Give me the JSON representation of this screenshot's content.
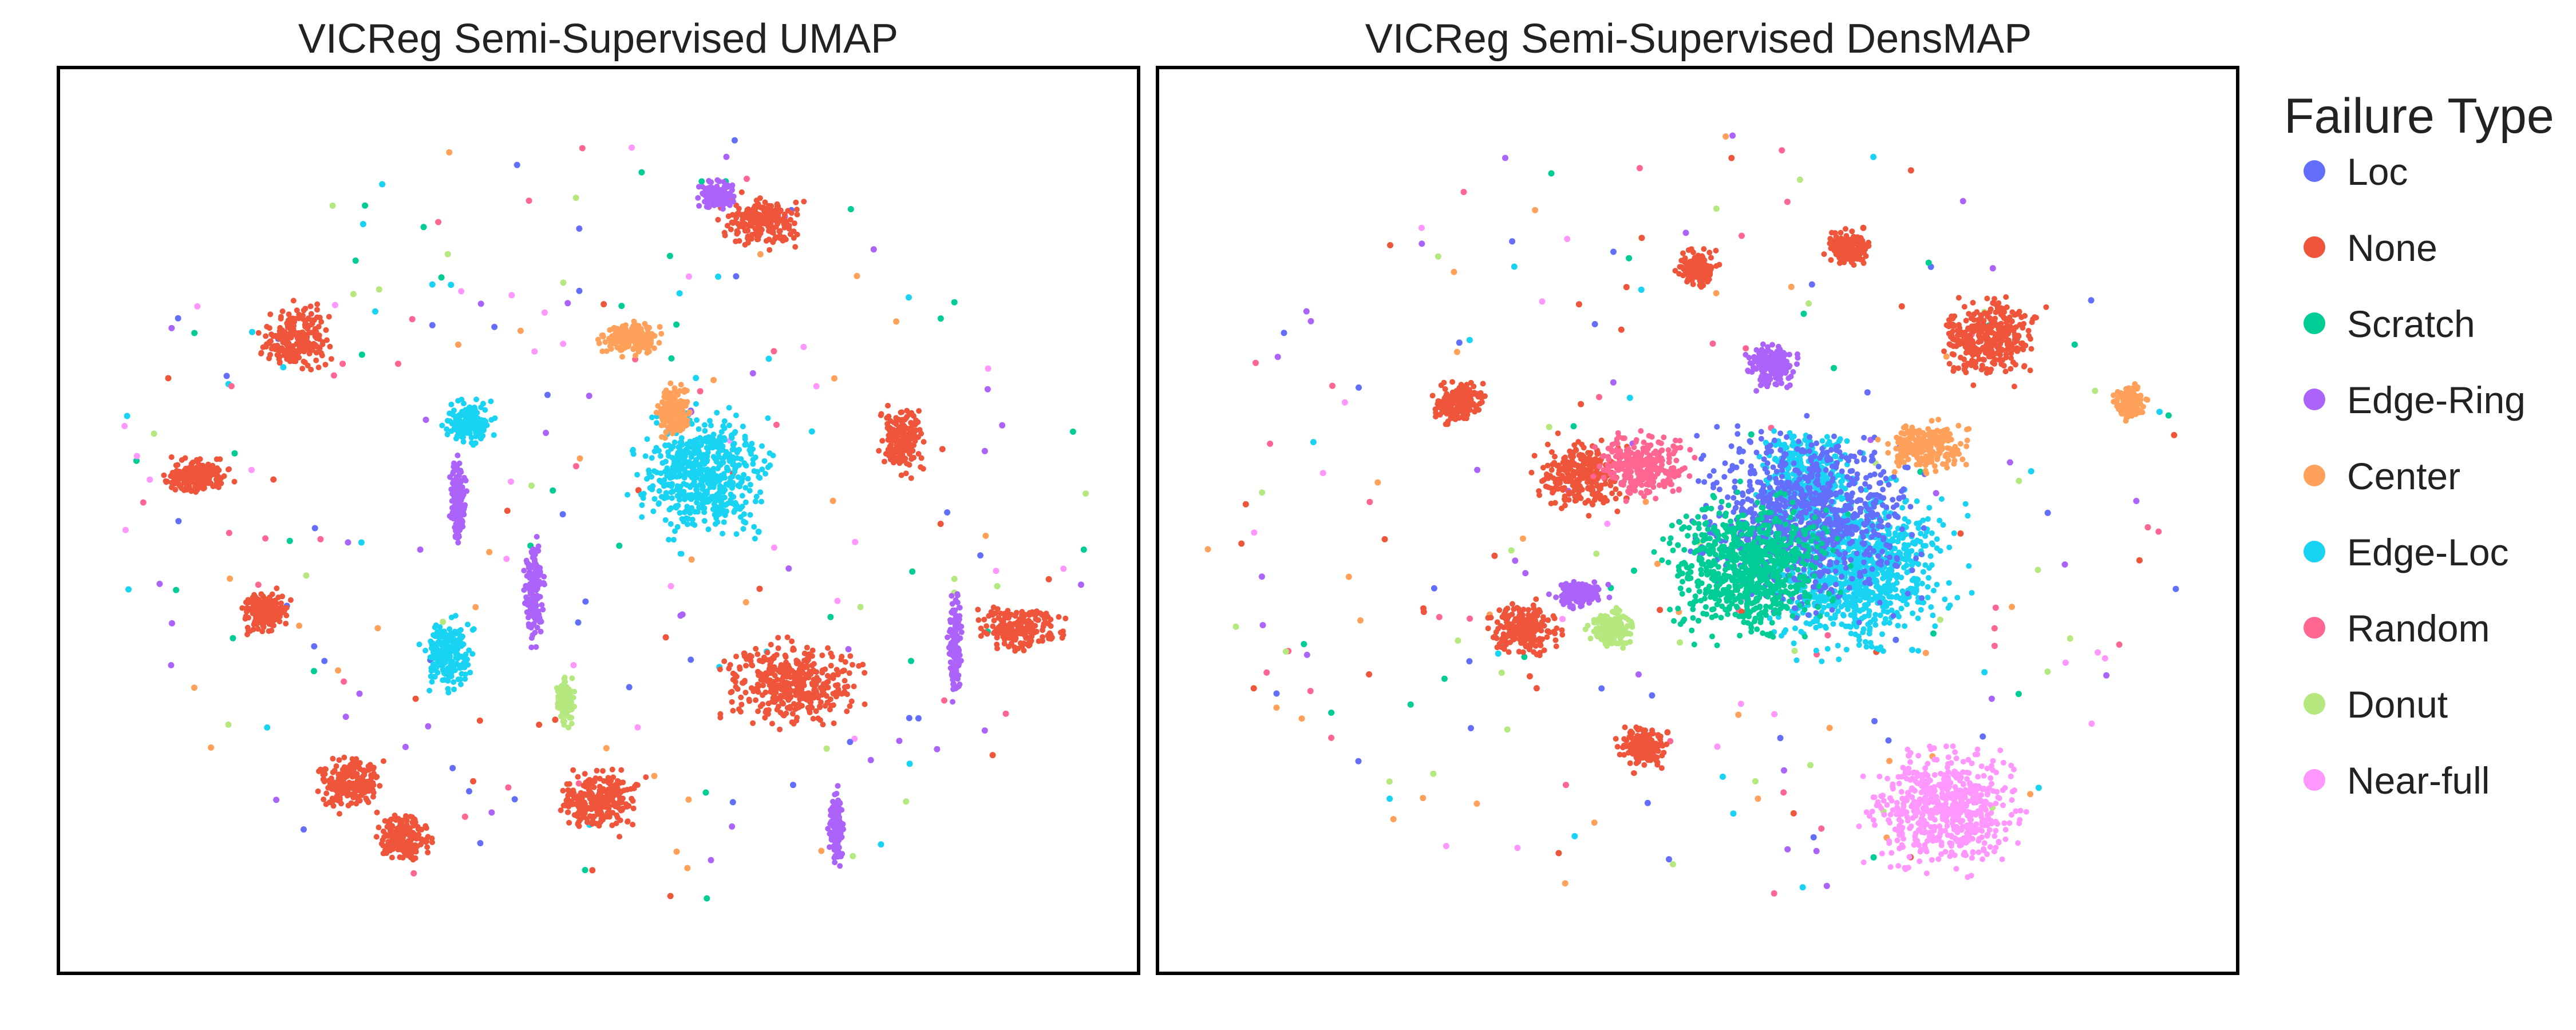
{
  "legend": {
    "title": "Failure Type",
    "items": [
      {
        "label": "Loc",
        "color": "#636efa"
      },
      {
        "label": "None",
        "color": "#ef553b"
      },
      {
        "label": "Scratch",
        "color": "#00cc96"
      },
      {
        "label": "Edge-Ring",
        "color": "#ab63fa"
      },
      {
        "label": "Center",
        "color": "#ffa15a"
      },
      {
        "label": "Edge-Loc",
        "color": "#19d3f3"
      },
      {
        "label": "Random",
        "color": "#ff6692"
      },
      {
        "label": "Donut",
        "color": "#b6e880"
      },
      {
        "label": "Near-full",
        "color": "#ff97ff"
      }
    ]
  },
  "chart_data": [
    {
      "type": "scatter",
      "title": "VICReg Semi-Supervised UMAP",
      "xlabel": "",
      "ylabel": "",
      "grid": false,
      "axes_visible": false,
      "legend": "right (shared)",
      "series": [
        {
          "name": "None",
          "clusters": [
            [
              0.22,
              0.3,
              0.04,
              0.045
            ],
            [
              0.19,
              0.6,
              0.03,
              0.03
            ],
            [
              0.68,
              0.68,
              0.08,
              0.06
            ],
            [
              0.89,
              0.62,
              0.05,
              0.03
            ],
            [
              0.78,
              0.41,
              0.025,
              0.05
            ],
            [
              0.13,
              0.45,
              0.04,
              0.025
            ],
            [
              0.27,
              0.79,
              0.04,
              0.04
            ],
            [
              0.5,
              0.81,
              0.05,
              0.045
            ],
            [
              0.65,
              0.17,
              0.045,
              0.035
            ],
            [
              0.32,
              0.85,
              0.03,
              0.035
            ]
          ]
        },
        {
          "name": "Edge-Loc",
          "clusters": [
            [
              0.6,
              0.45,
              0.08,
              0.09
            ],
            [
              0.38,
              0.39,
              0.03,
              0.03
            ],
            [
              0.36,
              0.65,
              0.03,
              0.05
            ]
          ]
        },
        {
          "name": "Edge-Ring",
          "clusters": [
            [
              0.44,
              0.58,
              0.012,
              0.075
            ],
            [
              0.37,
              0.48,
              0.01,
              0.06
            ],
            [
              0.83,
              0.64,
              0.008,
              0.07
            ],
            [
              0.72,
              0.84,
              0.008,
              0.05
            ],
            [
              0.61,
              0.14,
              0.02,
              0.02
            ]
          ]
        },
        {
          "name": "Center",
          "clusters": [
            [
              0.53,
              0.3,
              0.04,
              0.025
            ],
            [
              0.57,
              0.38,
              0.02,
              0.04
            ]
          ]
        },
        {
          "name": "Donut",
          "clusters": [
            [
              0.47,
              0.7,
              0.01,
              0.035
            ]
          ]
        },
        {
          "name": "Random",
          "clusters": []
        },
        {
          "name": "Near-full",
          "clusters": []
        },
        {
          "name": "Loc",
          "clusters": []
        },
        {
          "name": "Scratch",
          "clusters": []
        }
      ]
    },
    {
      "type": "scatter",
      "title": "VICReg Semi-Supervised DensMAP",
      "xlabel": "",
      "ylabel": "",
      "grid": false,
      "axes_visible": false,
      "legend": "right (shared)",
      "series": [
        {
          "name": "Edge-Loc",
          "clusters": [
            [
              0.65,
              0.55,
              0.11,
              0.12
            ],
            [
              0.6,
              0.45,
              0.06,
              0.06
            ]
          ]
        },
        {
          "name": "Loc",
          "clusters": [
            [
              0.6,
              0.5,
              0.13,
              0.13
            ]
          ]
        },
        {
          "name": "None",
          "clusters": [
            [
              0.77,
              0.3,
              0.06,
              0.06
            ],
            [
              0.39,
              0.45,
              0.05,
              0.05
            ],
            [
              0.34,
              0.62,
              0.04,
              0.04
            ],
            [
              0.45,
              0.75,
              0.03,
              0.03
            ],
            [
              0.28,
              0.37,
              0.03,
              0.03
            ],
            [
              0.64,
              0.2,
              0.025,
              0.025
            ],
            [
              0.5,
              0.22,
              0.025,
              0.025
            ]
          ]
        },
        {
          "name": "Center",
          "clusters": [
            [
              0.71,
              0.42,
              0.05,
              0.035
            ],
            [
              0.9,
              0.37,
              0.02,
              0.025
            ]
          ]
        },
        {
          "name": "Random",
          "clusters": [
            [
              0.45,
              0.44,
              0.06,
              0.045
            ]
          ]
        },
        {
          "name": "Donut",
          "clusters": [
            [
              0.42,
              0.62,
              0.025,
              0.025
            ]
          ]
        },
        {
          "name": "Near-full",
          "clusters": [
            [
              0.73,
              0.82,
              0.09,
              0.09
            ]
          ]
        },
        {
          "name": "Edge-Ring",
          "clusters": [
            [
              0.57,
              0.33,
              0.03,
              0.03
            ],
            [
              0.39,
              0.58,
              0.03,
              0.02
            ]
          ]
        },
        {
          "name": "Scratch",
          "clusters": [
            [
              0.55,
              0.55,
              0.1,
              0.1
            ]
          ]
        }
      ]
    }
  ]
}
